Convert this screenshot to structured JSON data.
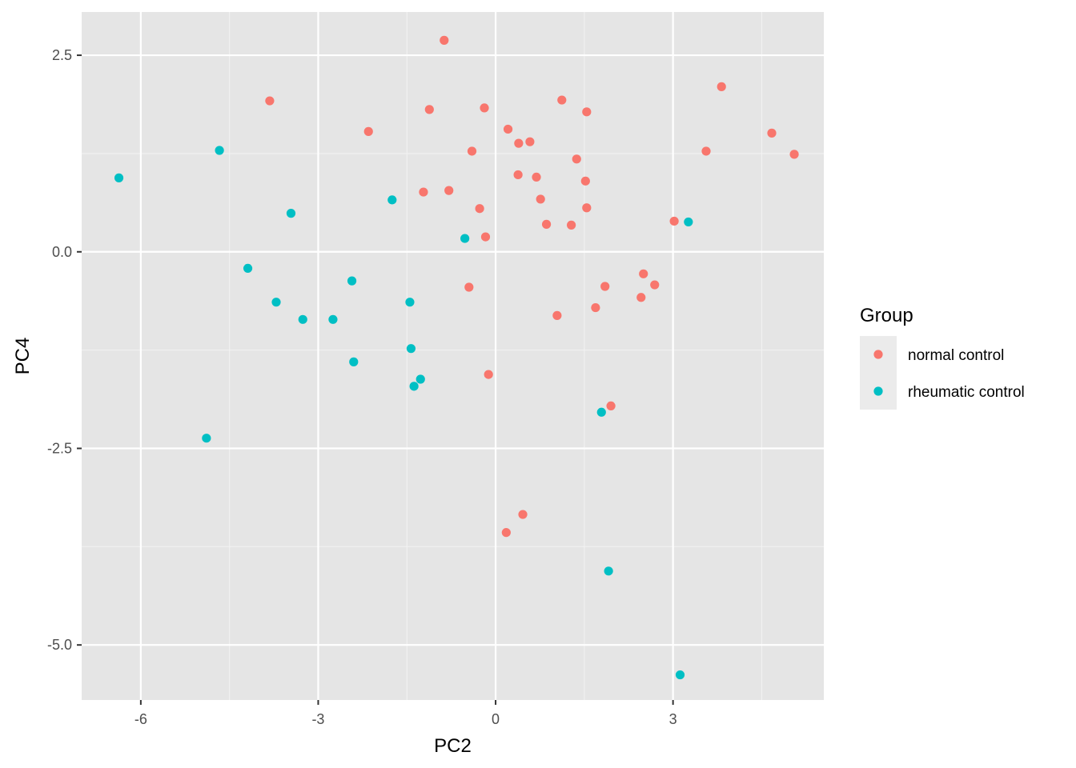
{
  "chart_data": {
    "type": "scatter",
    "xlabel": "PC2",
    "ylabel": "PC4",
    "xlim": [
      -7.0,
      5.55
    ],
    "ylim": [
      -5.7,
      3.05
    ],
    "x_ticks": [
      -6,
      -3,
      0,
      3
    ],
    "x_tick_labels": [
      "-6",
      "-3",
      "0",
      "3"
    ],
    "y_ticks": [
      2.5,
      0,
      -2.5,
      -5
    ],
    "y_tick_labels": [
      "2.5",
      "0.0",
      "-2.5",
      "-5.0"
    ],
    "grid": true,
    "background": "#e5e5e5",
    "grid_color": "#ffffff",
    "legend": {
      "title": "Group",
      "position": "right"
    },
    "series": [
      {
        "name": "normal control",
        "color": "#F8766D",
        "points": [
          [
            -0.87,
            2.69
          ],
          [
            3.82,
            2.1
          ],
          [
            -3.82,
            1.92
          ],
          [
            1.12,
            1.93
          ],
          [
            -1.12,
            1.81
          ],
          [
            -0.19,
            1.83
          ],
          [
            1.54,
            1.78
          ],
          [
            4.67,
            1.51
          ],
          [
            -2.15,
            1.53
          ],
          [
            0.21,
            1.56
          ],
          [
            0.39,
            1.38
          ],
          [
            0.58,
            1.4
          ],
          [
            -0.4,
            1.28
          ],
          [
            3.56,
            1.28
          ],
          [
            5.05,
            1.24
          ],
          [
            1.37,
            1.18
          ],
          [
            0.38,
            0.98
          ],
          [
            0.69,
            0.95
          ],
          [
            1.52,
            0.9
          ],
          [
            -1.22,
            0.76
          ],
          [
            -0.79,
            0.78
          ],
          [
            0.76,
            0.67
          ],
          [
            -0.27,
            0.55
          ],
          [
            1.54,
            0.56
          ],
          [
            0.86,
            0.35
          ],
          [
            1.28,
            0.34
          ],
          [
            3.02,
            0.39
          ],
          [
            -0.17,
            0.19
          ],
          [
            2.5,
            -0.28
          ],
          [
            -0.45,
            -0.45
          ],
          [
            1.85,
            -0.44
          ],
          [
            2.69,
            -0.42
          ],
          [
            2.46,
            -0.58
          ],
          [
            1.69,
            -0.71
          ],
          [
            1.04,
            -0.81
          ],
          [
            -0.12,
            -1.56
          ],
          [
            1.95,
            -1.96
          ],
          [
            0.46,
            -3.34
          ],
          [
            0.18,
            -3.57
          ]
        ]
      },
      {
        "name": "rheumatic control",
        "color": "#00BFC4",
        "points": [
          [
            -6.37,
            0.94
          ],
          [
            -4.67,
            1.29
          ],
          [
            -3.46,
            0.49
          ],
          [
            -1.75,
            0.66
          ],
          [
            -0.52,
            0.17
          ],
          [
            3.26,
            0.38
          ],
          [
            -4.19,
            -0.21
          ],
          [
            -2.43,
            -0.37
          ],
          [
            -3.71,
            -0.64
          ],
          [
            -1.45,
            -0.64
          ],
          [
            -3.26,
            -0.86
          ],
          [
            -2.75,
            -0.86
          ],
          [
            -1.43,
            -1.23
          ],
          [
            -2.4,
            -1.4
          ],
          [
            -1.27,
            -1.62
          ],
          [
            -1.38,
            -1.71
          ],
          [
            1.79,
            -2.04
          ],
          [
            -4.89,
            -2.37
          ],
          [
            1.91,
            -4.06
          ],
          [
            3.12,
            -5.38
          ]
        ]
      }
    ]
  }
}
